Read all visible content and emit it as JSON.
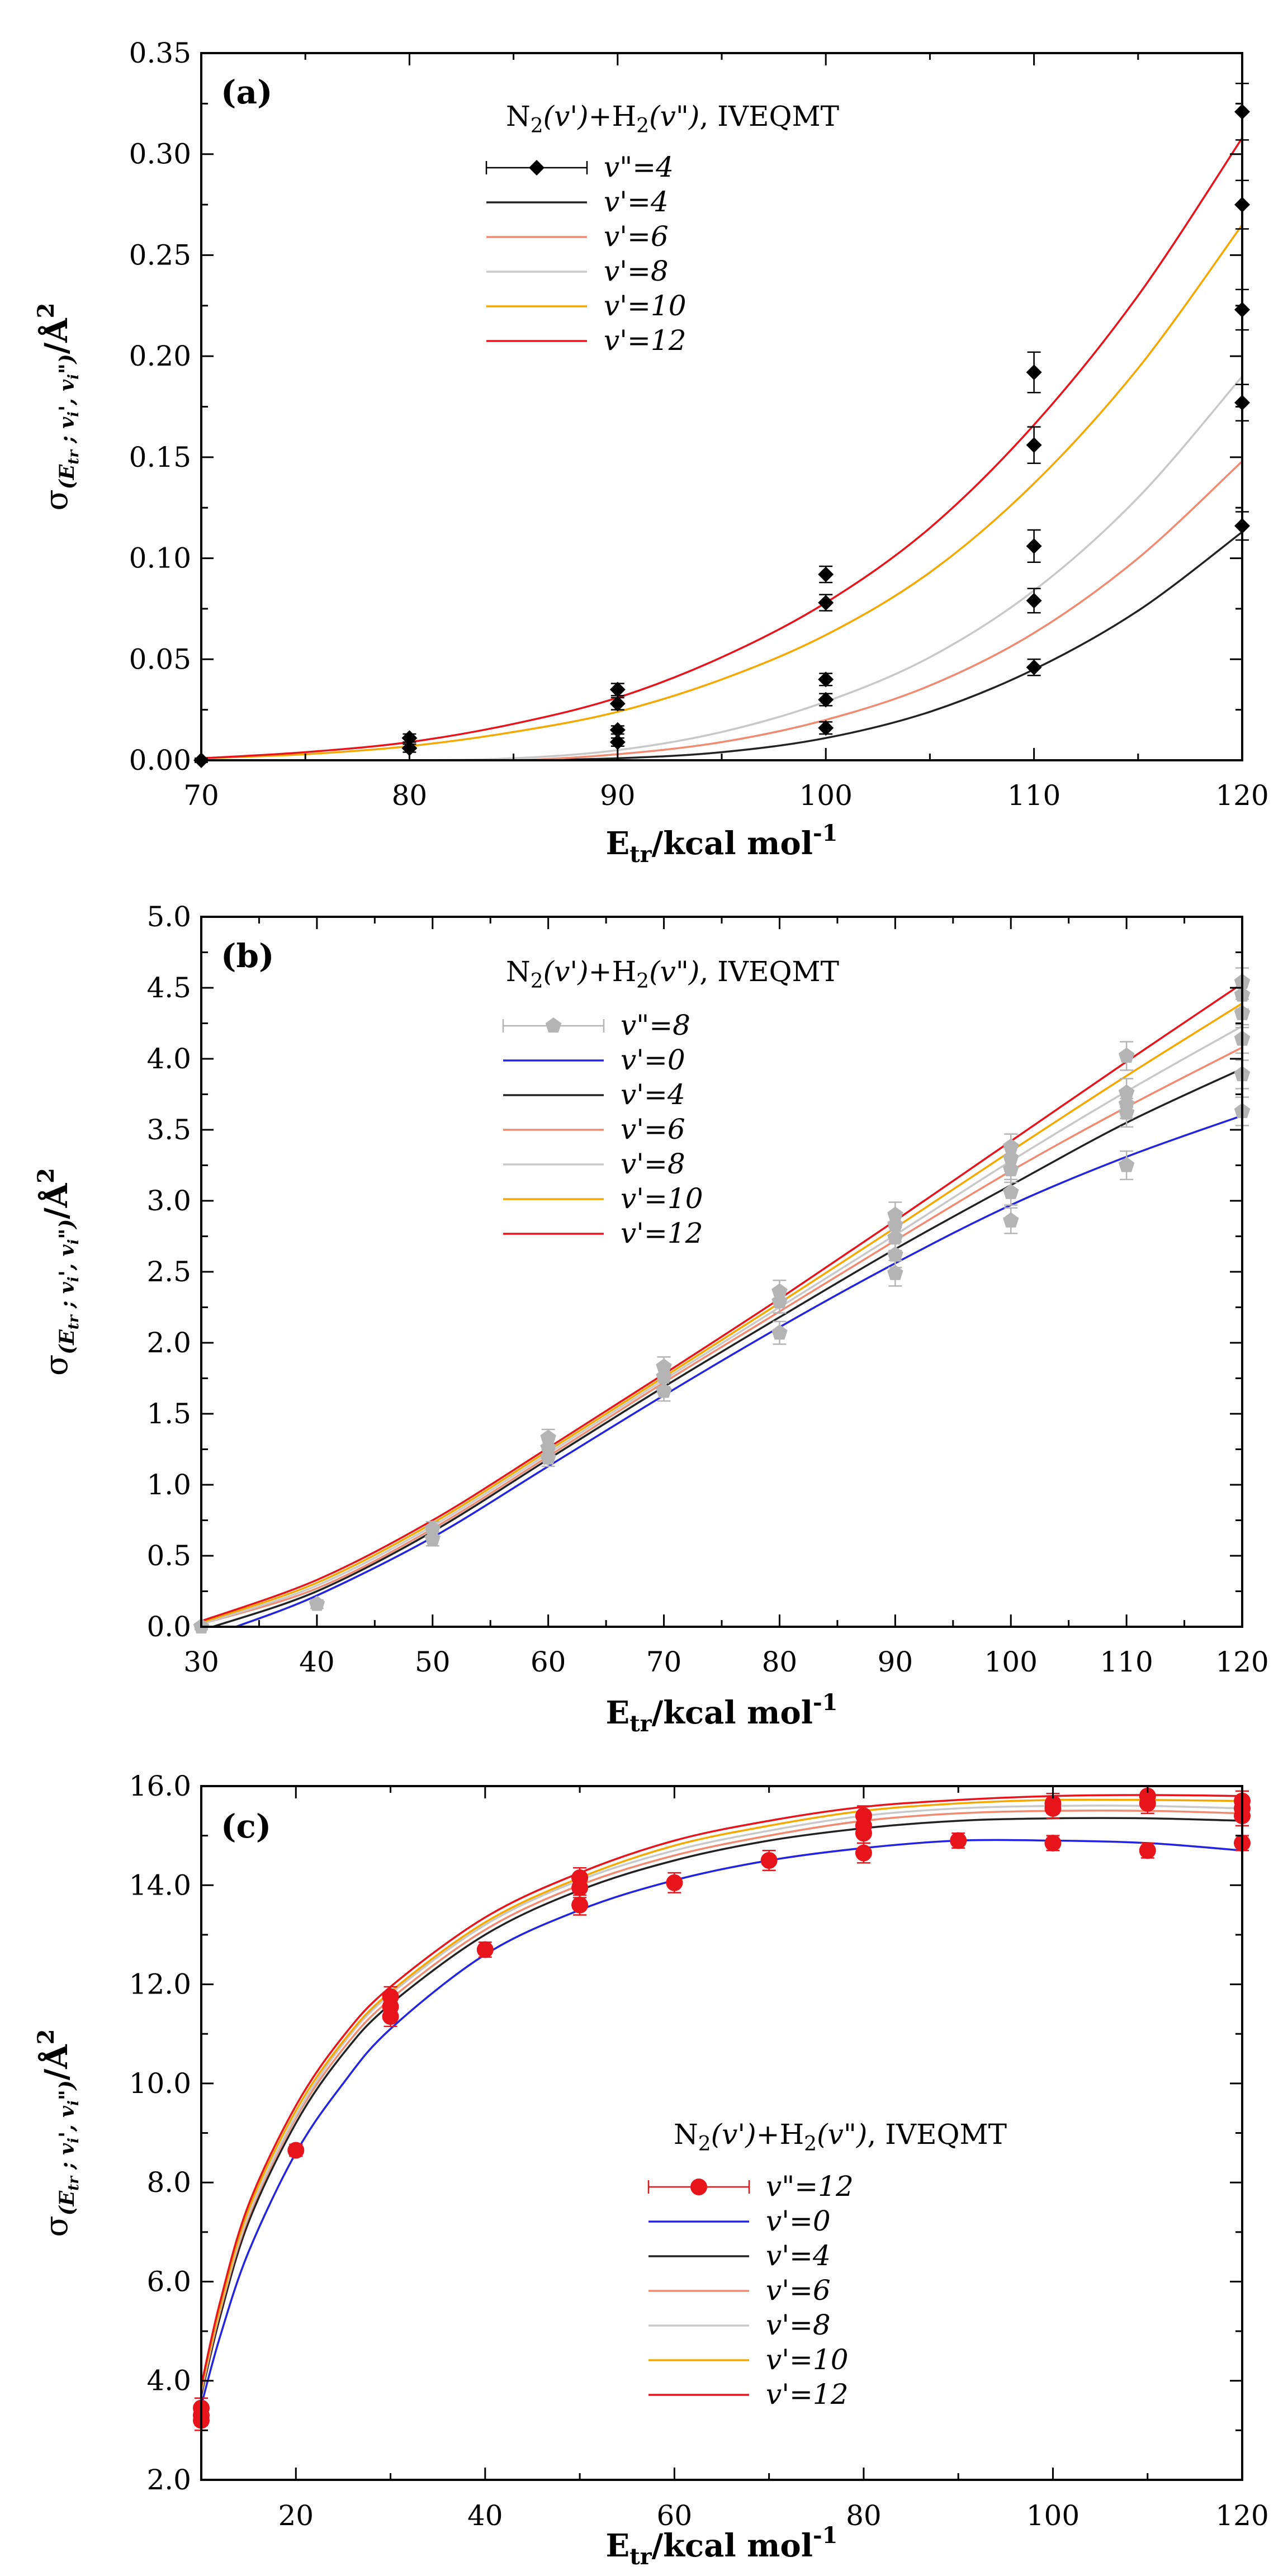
{
  "legend_title_parts": {
    "n2": "N",
    "sub2": "2",
    "v1": "(v')",
    "plus": "+H",
    "v2": "(v\")",
    "method": ", IVEQMT"
  },
  "xlabel_parts": {
    "e": "E",
    "sub": "tr",
    "rest": "/kcal mol",
    "sup": "-1"
  },
  "ylabel_parts": {
    "sigma": "σ",
    "sub": "(E",
    "sub_tr": "tr",
    "sub_rest": " ; v",
    "sub_i": "i",
    "sub_prime": "', v",
    "sub_i2": "i",
    "sub_close": "\")",
    "unit": "/Å",
    "sup": "2"
  },
  "chart_data": [
    {
      "panel": "(a)",
      "type": "scatter",
      "title": "",
      "xlabel": "Etr/kcal mol-1",
      "ylabel": "σ(Etr ; v'i, v\"i)/Å2",
      "xlim": [
        70,
        120
      ],
      "ylim": [
        0,
        0.35
      ],
      "xticks": [
        "70",
        "80",
        "90",
        "100",
        "110",
        "120"
      ],
      "yticks": [
        "0.00",
        "0.05",
        "0.10",
        "0.15",
        "0.20",
        "0.25",
        "0.30",
        "0.35"
      ],
      "legend_position": "top-center",
      "legend_title": "N2(v')+H2(v\"), IVEQMT",
      "points_label": "v\"=4",
      "marker": "diamond",
      "marker_color": "#000000",
      "points": [
        {
          "x": 70,
          "y": 0.0,
          "err": 0.001
        },
        {
          "x": 80,
          "y": 0.011,
          "err": 0.002
        },
        {
          "x": 80,
          "y": 0.006,
          "err": 0.002
        },
        {
          "x": 90,
          "y": 0.035,
          "err": 0.003
        },
        {
          "x": 90,
          "y": 0.028,
          "err": 0.003
        },
        {
          "x": 90,
          "y": 0.015,
          "err": 0.002
        },
        {
          "x": 90,
          "y": 0.009,
          "err": 0.002
        },
        {
          "x": 100,
          "y": 0.092,
          "err": 0.004
        },
        {
          "x": 100,
          "y": 0.078,
          "err": 0.004
        },
        {
          "x": 100,
          "y": 0.04,
          "err": 0.003
        },
        {
          "x": 100,
          "y": 0.03,
          "err": 0.003
        },
        {
          "x": 100,
          "y": 0.016,
          "err": 0.003
        },
        {
          "x": 110,
          "y": 0.192,
          "err": 0.01
        },
        {
          "x": 110,
          "y": 0.156,
          "err": 0.009
        },
        {
          "x": 110,
          "y": 0.106,
          "err": 0.008
        },
        {
          "x": 110,
          "y": 0.079,
          "err": 0.006
        },
        {
          "x": 110,
          "y": 0.046,
          "err": 0.004
        },
        {
          "x": 120,
          "y": 0.321,
          "err": 0.014
        },
        {
          "x": 120,
          "y": 0.275,
          "err": 0.012
        },
        {
          "x": 120,
          "y": 0.223,
          "err": 0.01
        },
        {
          "x": 120,
          "y": 0.177,
          "err": 0.009
        },
        {
          "x": 120,
          "y": 0.116,
          "err": 0.007
        }
      ],
      "series": [
        {
          "name": "v'=4",
          "color": "#222222",
          "x": [
            70,
            75,
            80,
            85,
            90,
            95,
            100,
            105,
            110,
            115,
            120
          ],
          "values": [
            0,
            0,
            0,
            0,
            0.001,
            0.004,
            0.011,
            0.024,
            0.045,
            0.074,
            0.113
          ]
        },
        {
          "name": "v'=6",
          "color": "#f08a70",
          "x": [
            70,
            75,
            80,
            85,
            90,
            95,
            100,
            105,
            110,
            115,
            120
          ],
          "values": [
            0,
            0,
            0,
            0,
            0.003,
            0.009,
            0.02,
            0.037,
            0.063,
            0.1,
            0.148
          ]
        },
        {
          "name": "v'=8",
          "color": "#c8c8c8",
          "x": [
            70,
            75,
            80,
            85,
            90,
            95,
            100,
            105,
            110,
            115,
            120
          ],
          "values": [
            0,
            0,
            0,
            0.001,
            0.005,
            0.014,
            0.029,
            0.051,
            0.084,
            0.13,
            0.19
          ]
        },
        {
          "name": "v'=10",
          "color": "#f5a800",
          "x": [
            70,
            75,
            80,
            85,
            90,
            95,
            100,
            105,
            110,
            115,
            120
          ],
          "values": [
            0.001,
            0.003,
            0.007,
            0.014,
            0.024,
            0.04,
            0.062,
            0.093,
            0.137,
            0.194,
            0.265
          ]
        },
        {
          "name": "v'=12",
          "color": "#e8141c",
          "x": [
            70,
            75,
            80,
            85,
            90,
            95,
            100,
            105,
            110,
            115,
            120
          ],
          "values": [
            0.001,
            0.004,
            0.009,
            0.018,
            0.031,
            0.051,
            0.078,
            0.115,
            0.166,
            0.23,
            0.308
          ]
        }
      ]
    },
    {
      "panel": "(b)",
      "type": "scatter",
      "title": "",
      "xlabel": "Etr/kcal mol-1",
      "ylabel": "σ(Etr ; v'i, v\"i)/Å2",
      "xlim": [
        30,
        120
      ],
      "ylim": [
        0,
        5.0
      ],
      "xticks": [
        "30",
        "40",
        "50",
        "60",
        "70",
        "80",
        "90",
        "100",
        "110",
        "120"
      ],
      "yticks": [
        "0.0",
        "0.5",
        "1.0",
        "1.5",
        "2.0",
        "2.5",
        "3.0",
        "3.5",
        "4.0",
        "4.5",
        "5.0"
      ],
      "legend_position": "top-center",
      "legend_title": "N2(v')+H2(v\"), IVEQMT",
      "points_label": "v\"=8",
      "marker": "pentagon",
      "marker_color": "#b4b4b4",
      "points": [
        {
          "x": 30,
          "y": 0.0,
          "err": 0.02
        },
        {
          "x": 40,
          "y": 0.16,
          "err": 0.03
        },
        {
          "x": 50,
          "y": 0.69,
          "err": 0.05
        },
        {
          "x": 50,
          "y": 0.62,
          "err": 0.05
        },
        {
          "x": 60,
          "y": 1.33,
          "err": 0.06
        },
        {
          "x": 60,
          "y": 1.26,
          "err": 0.06
        },
        {
          "x": 60,
          "y": 1.19,
          "err": 0.06
        },
        {
          "x": 70,
          "y": 1.83,
          "err": 0.07
        },
        {
          "x": 70,
          "y": 1.76,
          "err": 0.07
        },
        {
          "x": 70,
          "y": 1.66,
          "err": 0.07
        },
        {
          "x": 80,
          "y": 2.36,
          "err": 0.08
        },
        {
          "x": 80,
          "y": 2.29,
          "err": 0.08
        },
        {
          "x": 80,
          "y": 2.07,
          "err": 0.08
        },
        {
          "x": 90,
          "y": 2.9,
          "err": 0.09
        },
        {
          "x": 90,
          "y": 2.83,
          "err": 0.09
        },
        {
          "x": 90,
          "y": 2.74,
          "err": 0.09
        },
        {
          "x": 90,
          "y": 2.62,
          "err": 0.09
        },
        {
          "x": 90,
          "y": 2.49,
          "err": 0.09
        },
        {
          "x": 100,
          "y": 3.38,
          "err": 0.09
        },
        {
          "x": 100,
          "y": 3.3,
          "err": 0.09
        },
        {
          "x": 100,
          "y": 3.22,
          "err": 0.09
        },
        {
          "x": 100,
          "y": 3.06,
          "err": 0.09
        },
        {
          "x": 100,
          "y": 2.86,
          "err": 0.09
        },
        {
          "x": 110,
          "y": 4.02,
          "err": 0.1
        },
        {
          "x": 110,
          "y": 3.76,
          "err": 0.1
        },
        {
          "x": 110,
          "y": 3.68,
          "err": 0.1
        },
        {
          "x": 110,
          "y": 3.62,
          "err": 0.1
        },
        {
          "x": 110,
          "y": 3.25,
          "err": 0.1
        },
        {
          "x": 120,
          "y": 4.54,
          "err": 0.1
        },
        {
          "x": 120,
          "y": 4.45,
          "err": 0.1
        },
        {
          "x": 120,
          "y": 4.32,
          "err": 0.1
        },
        {
          "x": 120,
          "y": 4.14,
          "err": 0.1
        },
        {
          "x": 120,
          "y": 3.89,
          "err": 0.1
        },
        {
          "x": 120,
          "y": 3.63,
          "err": 0.1
        }
      ],
      "series": [
        {
          "name": "v'=0",
          "color": "#2424e0",
          "x": [
            33,
            40,
            50,
            60,
            70,
            80,
            90,
            100,
            110,
            120
          ],
          "values": [
            0.0,
            0.22,
            0.63,
            1.13,
            1.63,
            2.11,
            2.56,
            2.97,
            3.31,
            3.6
          ]
        },
        {
          "name": "v'=4",
          "color": "#222222",
          "x": [
            31,
            40,
            50,
            60,
            70,
            80,
            90,
            100,
            110,
            120
          ],
          "values": [
            0.0,
            0.25,
            0.67,
            1.18,
            1.69,
            2.18,
            2.66,
            3.11,
            3.55,
            3.93
          ]
        },
        {
          "name": "v'=6",
          "color": "#f08a70",
          "x": [
            30,
            40,
            50,
            60,
            70,
            80,
            90,
            100,
            110,
            120
          ],
          "values": [
            0.02,
            0.27,
            0.69,
            1.2,
            1.72,
            2.22,
            2.72,
            3.21,
            3.66,
            4.08
          ]
        },
        {
          "name": "v'=8",
          "color": "#c8c8c8",
          "x": [
            30,
            40,
            50,
            60,
            70,
            80,
            90,
            100,
            110,
            120
          ],
          "values": [
            0.02,
            0.29,
            0.71,
            1.22,
            1.74,
            2.25,
            2.76,
            3.28,
            3.77,
            4.23
          ]
        },
        {
          "name": "v'=10",
          "color": "#f5a800",
          "x": [
            30,
            40,
            50,
            60,
            70,
            80,
            90,
            100,
            110,
            120
          ],
          "values": [
            0.03,
            0.31,
            0.73,
            1.24,
            1.76,
            2.28,
            2.81,
            3.35,
            3.88,
            4.39
          ]
        },
        {
          "name": "v'=12",
          "color": "#e8141c",
          "x": [
            30,
            40,
            50,
            60,
            70,
            80,
            90,
            100,
            110,
            120
          ],
          "values": [
            0.04,
            0.33,
            0.75,
            1.26,
            1.78,
            2.31,
            2.86,
            3.42,
            3.98,
            4.53
          ]
        }
      ]
    },
    {
      "panel": "(c)",
      "type": "scatter",
      "title": "",
      "xlabel": "Etr/kcal mol-1",
      "ylabel": "σ(Etr ; v'i, v\"i)/Å2",
      "xlim": [
        10,
        120
      ],
      "ylim": [
        2.0,
        16.0
      ],
      "xticks": [
        "20",
        "40",
        "60",
        "80",
        "100",
        "120"
      ],
      "xtick_values": [
        20,
        40,
        60,
        80,
        100,
        120
      ],
      "yticks": [
        "2.0",
        "4.0",
        "6.0",
        "8.0",
        "10.0",
        "12.0",
        "14.0",
        "16.0"
      ],
      "legend_position": "center-right",
      "legend_title": "N2(v')+H2(v\"), IVEQMT",
      "points_label": "v\"=12",
      "marker": "circle",
      "marker_color": "#e8141c",
      "points": [
        {
          "x": 10,
          "y": 3.45,
          "err": 0.2
        },
        {
          "x": 10,
          "y": 3.3,
          "err": 0.2
        },
        {
          "x": 10,
          "y": 3.2,
          "err": 0.2
        },
        {
          "x": 20,
          "y": 8.65,
          "err": 0.12
        },
        {
          "x": 30,
          "y": 11.75,
          "err": 0.2
        },
        {
          "x": 30,
          "y": 11.55,
          "err": 0.2
        },
        {
          "x": 30,
          "y": 11.35,
          "err": 0.2
        },
        {
          "x": 40,
          "y": 12.7,
          "err": 0.15
        },
        {
          "x": 50,
          "y": 14.15,
          "err": 0.2
        },
        {
          "x": 50,
          "y": 13.95,
          "err": 0.2
        },
        {
          "x": 50,
          "y": 13.6,
          "err": 0.2
        },
        {
          "x": 60,
          "y": 14.05,
          "err": 0.2
        },
        {
          "x": 70,
          "y": 14.5,
          "err": 0.2
        },
        {
          "x": 80,
          "y": 15.4,
          "err": 0.2
        },
        {
          "x": 80,
          "y": 15.2,
          "err": 0.2
        },
        {
          "x": 80,
          "y": 15.05,
          "err": 0.2
        },
        {
          "x": 80,
          "y": 14.65,
          "err": 0.2
        },
        {
          "x": 90,
          "y": 14.9,
          "err": 0.15
        },
        {
          "x": 100,
          "y": 15.65,
          "err": 0.2
        },
        {
          "x": 100,
          "y": 15.55,
          "err": 0.2
        },
        {
          "x": 100,
          "y": 14.85,
          "err": 0.15
        },
        {
          "x": 110,
          "y": 15.8,
          "err": 0.2
        },
        {
          "x": 110,
          "y": 15.65,
          "err": 0.2
        },
        {
          "x": 110,
          "y": 14.7,
          "err": 0.15
        },
        {
          "x": 120,
          "y": 15.7,
          "err": 0.2
        },
        {
          "x": 120,
          "y": 15.55,
          "err": 0.2
        },
        {
          "x": 120,
          "y": 15.4,
          "err": 0.2
        },
        {
          "x": 120,
          "y": 14.85,
          "err": 0.15
        }
      ],
      "series": [
        {
          "name": "v'=0",
          "color": "#2424e0",
          "x": [
            10,
            12,
            15,
            20,
            25,
            30,
            40,
            50,
            60,
            70,
            80,
            90,
            100,
            110,
            120
          ],
          "values": [
            3.5,
            4.9,
            6.6,
            8.6,
            10.0,
            11.1,
            12.6,
            13.5,
            14.1,
            14.5,
            14.75,
            14.9,
            14.9,
            14.85,
            14.7
          ]
        },
        {
          "name": "v'=4",
          "color": "#222222",
          "x": [
            10,
            12,
            15,
            20,
            25,
            30,
            40,
            50,
            60,
            70,
            80,
            90,
            100,
            110,
            120
          ],
          "values": [
            3.7,
            5.3,
            7.2,
            9.2,
            10.6,
            11.6,
            13.0,
            13.9,
            14.5,
            14.9,
            15.15,
            15.3,
            15.35,
            15.35,
            15.3
          ]
        },
        {
          "name": "v'=6",
          "color": "#f08a70",
          "x": [
            10,
            12,
            15,
            20,
            25,
            30,
            40,
            50,
            60,
            70,
            80,
            90,
            100,
            110,
            120
          ],
          "values": [
            3.75,
            5.4,
            7.3,
            9.3,
            10.7,
            11.7,
            13.1,
            14.0,
            14.6,
            15.0,
            15.3,
            15.45,
            15.5,
            15.5,
            15.45
          ]
        },
        {
          "name": "v'=8",
          "color": "#c8c8c8",
          "x": [
            10,
            12,
            15,
            20,
            25,
            30,
            40,
            50,
            60,
            70,
            80,
            90,
            100,
            110,
            120
          ],
          "values": [
            3.8,
            5.45,
            7.35,
            9.35,
            10.8,
            11.8,
            13.2,
            14.1,
            14.7,
            15.1,
            15.4,
            15.55,
            15.6,
            15.6,
            15.55
          ]
        },
        {
          "name": "v'=10",
          "color": "#f5a800",
          "x": [
            10,
            12,
            15,
            20,
            25,
            30,
            40,
            50,
            60,
            70,
            80,
            90,
            100,
            110,
            120
          ],
          "values": [
            3.85,
            5.5,
            7.45,
            9.45,
            10.85,
            11.85,
            13.25,
            14.15,
            14.8,
            15.2,
            15.5,
            15.65,
            15.72,
            15.72,
            15.7
          ]
        },
        {
          "name": "v'=12",
          "color": "#e8141c",
          "x": [
            10,
            12,
            15,
            20,
            25,
            30,
            40,
            50,
            60,
            70,
            80,
            90,
            100,
            110,
            120
          ],
          "values": [
            3.9,
            5.6,
            7.55,
            9.55,
            10.95,
            11.95,
            13.35,
            14.25,
            14.9,
            15.3,
            15.58,
            15.72,
            15.8,
            15.82,
            15.8
          ]
        }
      ]
    }
  ]
}
